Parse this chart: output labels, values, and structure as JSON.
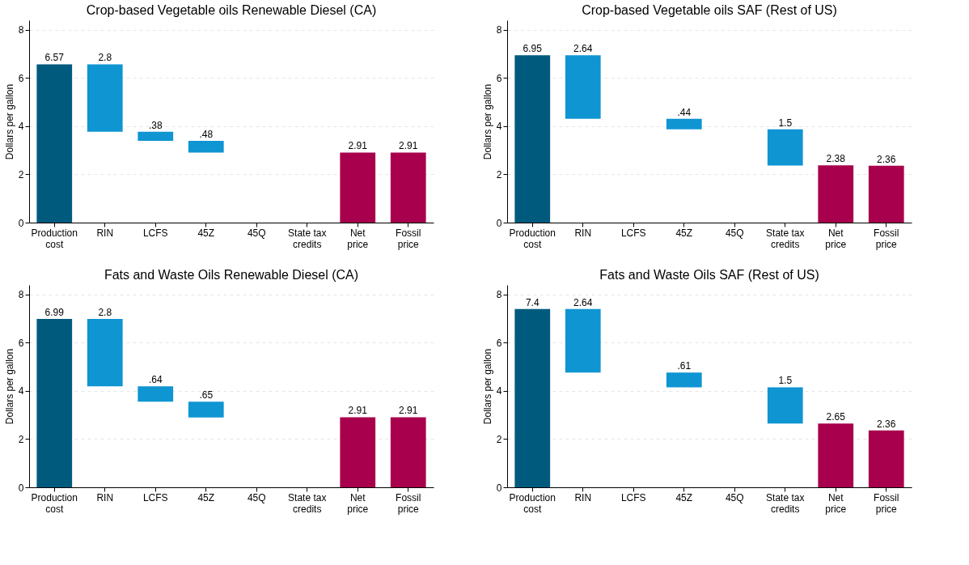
{
  "chart_data": [
    {
      "type": "bar",
      "title": "Crop-based Vegetable oils Renewable Diesel (CA)",
      "ylabel": "Dollars per gallon",
      "categories": [
        "Production\ncost",
        "RIN",
        "LCFS",
        "45Z",
        "45Q",
        "State tax\ncredits",
        "Net\nprice",
        "Fossil\nprice"
      ],
      "values": [
        6.57,
        2.8,
        0.38,
        0.48,
        null,
        null,
        2.91,
        2.91
      ],
      "base": [
        0,
        3.77,
        3.39,
        2.91,
        null,
        null,
        0,
        0
      ],
      "value_labels": [
        "6.57",
        "2.8",
        ".38",
        ".48",
        null,
        null,
        "2.91",
        "2.91"
      ],
      "colors": [
        "#005a7e",
        "#0f95d2",
        "#0f95d2",
        "#0f95d2",
        "#0f95d2",
        "#0f95d2",
        "#a8004c",
        "#a8004c"
      ],
      "ylim": [
        0,
        8.4
      ],
      "yticks": [
        0,
        2,
        4,
        6,
        8
      ],
      "grid": "y"
    },
    {
      "type": "bar",
      "title": "Crop-based Vegetable oils SAF (Rest of US)",
      "ylabel": "Dollars per gallon",
      "categories": [
        "Production\ncost",
        "RIN",
        "LCFS",
        "45Z",
        "45Q",
        "State tax\ncredits",
        "Net\nprice",
        "Fossil\nprice"
      ],
      "values": [
        6.95,
        2.64,
        null,
        0.44,
        null,
        1.5,
        2.38,
        2.36
      ],
      "base": [
        0,
        4.31,
        null,
        3.87,
        null,
        2.37,
        0,
        0
      ],
      "value_labels": [
        "6.95",
        "2.64",
        null,
        ".44",
        null,
        "1.5",
        "2.38",
        "2.36"
      ],
      "colors": [
        "#005a7e",
        "#0f95d2",
        "#0f95d2",
        "#0f95d2",
        "#0f95d2",
        "#0f95d2",
        "#a8004c",
        "#a8004c"
      ],
      "ylim": [
        0,
        8.4
      ],
      "yticks": [
        0,
        2,
        4,
        6,
        8
      ],
      "grid": "y"
    },
    {
      "type": "bar",
      "title": "Fats and Waste Oils Renewable Diesel (CA)",
      "ylabel": "Dollars per gallon",
      "categories": [
        "Production\ncost",
        "RIN",
        "LCFS",
        "45Z",
        "45Q",
        "State tax\ncredits",
        "Net\nprice",
        "Fossil\nprice"
      ],
      "values": [
        6.99,
        2.8,
        0.64,
        0.65,
        null,
        null,
        2.91,
        2.91
      ],
      "base": [
        0,
        4.19,
        3.55,
        2.9,
        null,
        null,
        0,
        0
      ],
      "value_labels": [
        "6.99",
        "2.8",
        ".64",
        ".65",
        null,
        null,
        "2.91",
        "2.91"
      ],
      "colors": [
        "#005a7e",
        "#0f95d2",
        "#0f95d2",
        "#0f95d2",
        "#0f95d2",
        "#0f95d2",
        "#a8004c",
        "#a8004c"
      ],
      "ylim": [
        0,
        8.4
      ],
      "yticks": [
        0,
        2,
        4,
        6,
        8
      ],
      "grid": "y"
    },
    {
      "type": "bar",
      "title": "Fats and Waste Oils SAF (Rest of US)",
      "ylabel": "Dollars per gallon",
      "categories": [
        "Production\ncost",
        "RIN",
        "LCFS",
        "45Z",
        "45Q",
        "State tax\ncredits",
        "Net\nprice",
        "Fossil\nprice"
      ],
      "values": [
        7.4,
        2.64,
        null,
        0.61,
        null,
        1.5,
        2.65,
        2.36
      ],
      "base": [
        0,
        4.76,
        null,
        4.15,
        null,
        2.65,
        0,
        0
      ],
      "value_labels": [
        "7.4",
        "2.64",
        null,
        ".61",
        null,
        "1.5",
        "2.65",
        "2.36"
      ],
      "colors": [
        "#005a7e",
        "#0f95d2",
        "#0f95d2",
        "#0f95d2",
        "#0f95d2",
        "#0f95d2",
        "#a8004c",
        "#a8004c"
      ],
      "ylim": [
        0,
        8.4
      ],
      "yticks": [
        0,
        2,
        4,
        6,
        8
      ],
      "grid": "y"
    }
  ]
}
